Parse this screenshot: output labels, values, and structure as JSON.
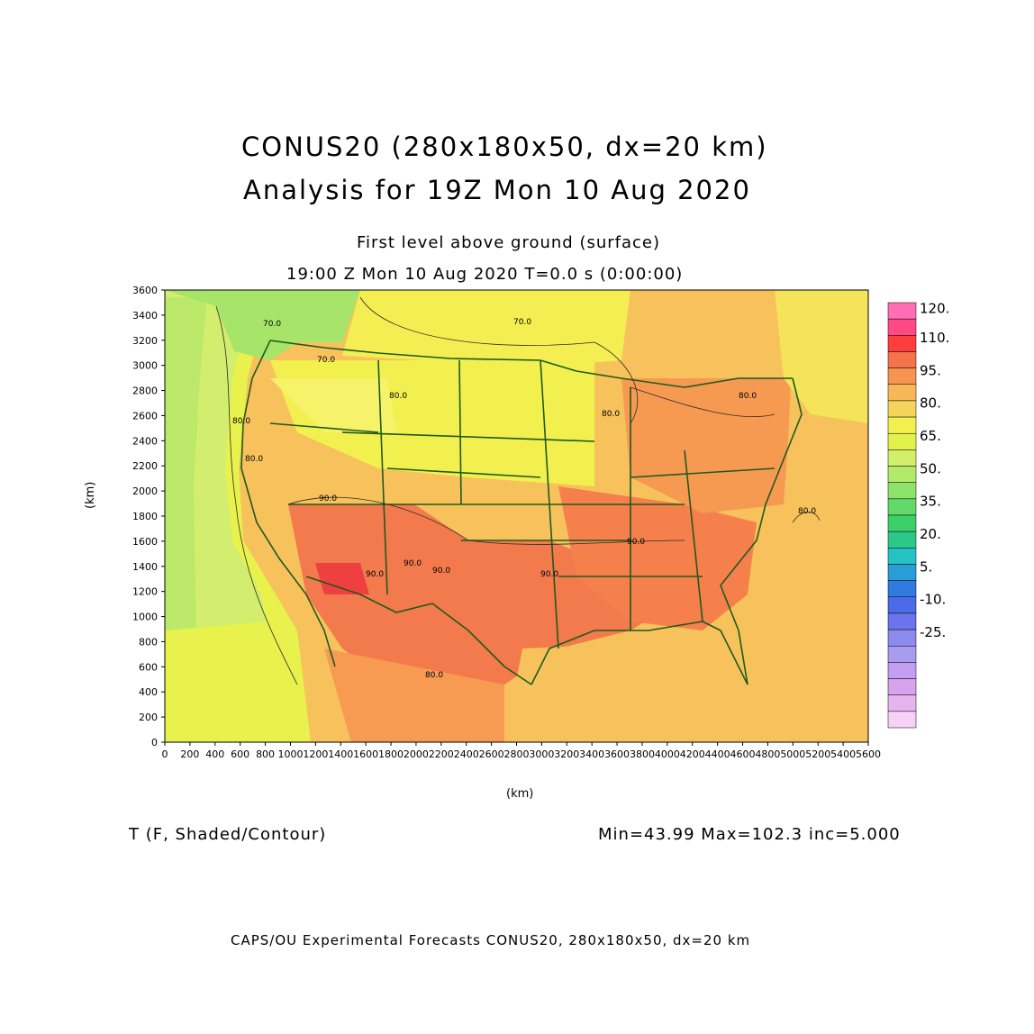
{
  "header": {
    "title_line1": "CONUS20 (280x180x50, dx=20 km)",
    "title_line2": "Analysis for 19Z Mon 10 Aug 2020",
    "level": "First level above ground (surface)",
    "time": "19:00 Z Mon 10 Aug 2020    T=0.0 s (0:00:00)"
  },
  "axes": {
    "y_unit": "(km)",
    "x_unit": "(km)",
    "y_ticks": [
      "3600",
      "3400",
      "3200",
      "3000",
      "2800",
      "2600",
      "2400",
      "2200",
      "2000",
      "1800",
      "1600",
      "1400",
      "1200",
      "1000",
      "800",
      "600",
      "400",
      "200",
      "0"
    ],
    "x_ticks": [
      "0",
      "200",
      "400",
      "600",
      "800",
      "1000",
      "1200",
      "1400",
      "1600",
      "1800",
      "2000",
      "2200",
      "2400",
      "2600",
      "2800",
      "3000",
      "3200",
      "3400",
      "3600",
      "3800",
      "4000",
      "4200",
      "4400",
      "4600",
      "4800",
      "5000",
      "5200",
      "5400",
      "5600"
    ]
  },
  "colorbar": {
    "labels": [
      "120.",
      "110.",
      "95.",
      "80.",
      "65.",
      "50.",
      "35.",
      "20.",
      "5.",
      "-10.",
      "-25."
    ],
    "colors": [
      "#ff6fb4",
      "#ff4a86",
      "#ff3d3d",
      "#f5734a",
      "#f7944f",
      "#f7b85a",
      "#f5d45c",
      "#f2f04f",
      "#e3f24a",
      "#d1ef6b",
      "#b4ea6a",
      "#8ee36a",
      "#62d96a",
      "#3bd06a",
      "#2bc88a",
      "#27c2c4",
      "#279ed8",
      "#2f7be0",
      "#4b6be8",
      "#6b74ea",
      "#8c8aec",
      "#a89cef",
      "#c29ff0",
      "#d7a3ec",
      "#e8b4ef",
      "#f6d2f6"
    ]
  },
  "map_labels": [
    "70.0",
    "70.0",
    "70.0",
    "80.0",
    "80.0",
    "80.0",
    "80.0",
    "90.0",
    "90.0",
    "90.0",
    "90.0",
    "90.0",
    "90.0",
    "80.0",
    "80.0",
    "80.0"
  ],
  "footer": {
    "variable": "T (F, Shaded/Contour)",
    "stats": "Min=43.99  Max=102.3  inc=5.000",
    "credit": "CAPS/OU Experimental Forecasts   CONUS20, 280x180x50, dx=20 km"
  }
}
